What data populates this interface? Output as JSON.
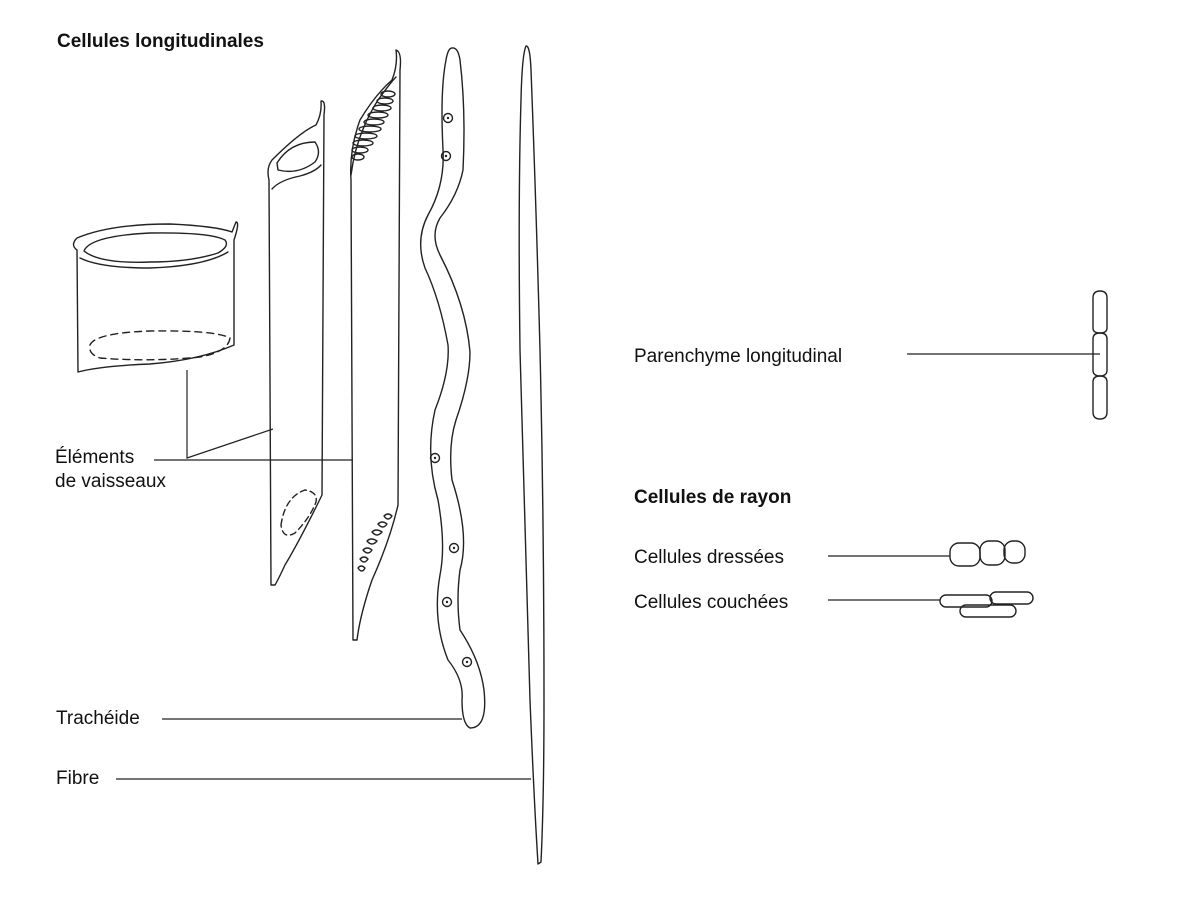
{
  "headings": {
    "longitudinal": "Cellules  longitudinales",
    "ray": "Cellules de rayon"
  },
  "labels": {
    "vessel_line1": "Éléments",
    "vessel_line2": "de vaisseaux",
    "tracheid": "Trachéide",
    "fiber": "Fibre",
    "parenchyma": "Parenchyme longitudinal",
    "upright": "Cellules dressées",
    "procumbent": "Cellules couchées"
  }
}
